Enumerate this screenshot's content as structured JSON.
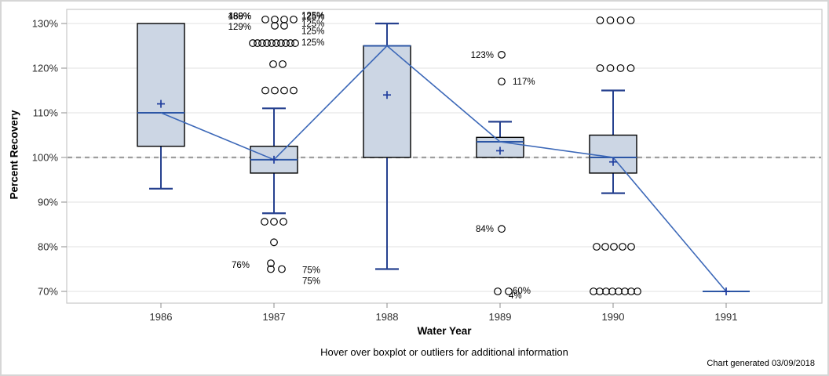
{
  "chart_data": {
    "type": "boxplot",
    "xlabel": "Water Year",
    "ylabel": "Percent Recovery",
    "footnote": "Hover over boxplot or outliers for additional information",
    "credit": "Chart generated 03/09/2018",
    "categories": [
      "1986",
      "1987",
      "1988",
      "1989",
      "1990",
      "1991"
    ],
    "ylim": [
      70,
      130
    ],
    "y_ticks": [
      70,
      80,
      90,
      100,
      110,
      120,
      130
    ],
    "y_tick_suffix": "%",
    "grid": true,
    "legend": "none",
    "reference_line": 100,
    "connect_series": {
      "name": "median",
      "values": [
        110,
        99.5,
        125,
        103.5,
        100,
        70
      ]
    },
    "boxes": [
      {
        "category": "1986",
        "q1": 102.5,
        "median": 110,
        "q3": 130,
        "mean": 112,
        "whisker_low": 93,
        "whisker_high": 130
      },
      {
        "category": "1987",
        "q1": 96.5,
        "median": 99.5,
        "q3": 102.5,
        "mean": 99.5,
        "whisker_low": 87.5,
        "whisker_high": 111
      },
      {
        "category": "1988",
        "q1": 100,
        "median": 125,
        "q3": 125,
        "mean": 114,
        "whisker_low": 75,
        "whisker_high": 130
      },
      {
        "category": "1989",
        "q1": 100,
        "median": 103.5,
        "q3": 104.5,
        "mean": 101.5,
        "whisker_low": 100,
        "whisker_high": 108
      },
      {
        "category": "1990",
        "q1": 96.5,
        "median": 100,
        "q3": 105,
        "mean": 99,
        "whisker_low": 92,
        "whisker_high": 115
      },
      {
        "category": "1991",
        "q1": 70,
        "median": 70,
        "q3": 70,
        "mean": 70,
        "whisker_low": 70,
        "whisker_high": 70
      }
    ],
    "outliers": [
      {
        "category": "1987",
        "rows": [
          {
            "v": 130.9,
            "n": 4,
            "gap": 12,
            "dx": 7
          },
          {
            "v": 129.5,
            "n": 2,
            "gap": 12,
            "dx": 7
          },
          {
            "v": 125.6,
            "n": 10,
            "gap": 6,
            "dx": 0
          },
          {
            "v": 120.9,
            "n": 2,
            "gap": 12,
            "dx": 5
          },
          {
            "v": 115,
            "n": 4,
            "gap": 12,
            "dx": 7
          },
          {
            "v": 85.6,
            "n": 3,
            "gap": 12,
            "dx": 0
          },
          {
            "v": 81,
            "n": 1,
            "gap": 12,
            "dx": 0
          },
          {
            "v": 76.3,
            "n": 1,
            "gap": 12,
            "dx": -4
          },
          {
            "v": 75,
            "n": 2,
            "gap": 14,
            "dx": 3
          }
        ]
      },
      {
        "category": "1989",
        "rows": [
          {
            "v": 123,
            "n": 1,
            "gap": 12,
            "dx": 2
          },
          {
            "v": 117,
            "n": 1,
            "gap": 12,
            "dx": 2
          },
          {
            "v": 84,
            "n": 1,
            "gap": 12,
            "dx": 2
          },
          {
            "v": 70,
            "n": 2,
            "gap": 14,
            "dx": 4
          }
        ]
      },
      {
        "category": "1990",
        "rows": [
          {
            "v": 130.7,
            "n": 4,
            "gap": 13,
            "dx": 3
          },
          {
            "v": 120,
            "n": 4,
            "gap": 13,
            "dx": 3
          },
          {
            "v": 80,
            "n": 5,
            "gap": 11,
            "dx": 1
          },
          {
            "v": 70,
            "n": 8,
            "gap": 8,
            "dx": 3
          }
        ]
      }
    ],
    "annotations": [
      {
        "category": "1987",
        "text": "130%",
        "v": 131.7,
        "dx": -29,
        "anchor": "end"
      },
      {
        "category": "1987",
        "text": "469%",
        "v": 131.7,
        "dx": -29,
        "anchor": "end"
      },
      {
        "category": "1987",
        "text": "188%",
        "v": 131.7,
        "dx": -29,
        "anchor": "end"
      },
      {
        "category": "1987",
        "text": "129%",
        "v": 129.3,
        "dx": -29,
        "anchor": "end"
      },
      {
        "category": "1987",
        "text": "125%",
        "v": 131.8,
        "dx": 35,
        "anchor": "start"
      },
      {
        "category": "1987",
        "text": "125%",
        "v": 131.6,
        "dx": 35,
        "anchor": "start"
      },
      {
        "category": "1987",
        "text": "125%",
        "v": 130.0,
        "dx": 35,
        "anchor": "start"
      },
      {
        "category": "1987",
        "text": "125%",
        "v": 128.3,
        "dx": 35,
        "anchor": "start"
      },
      {
        "category": "1987",
        "text": "125%",
        "v": 125.8,
        "dx": 35,
        "anchor": "start"
      },
      {
        "category": "1987",
        "text": "76%",
        "v": 76,
        "dx": -31,
        "anchor": "end"
      },
      {
        "category": "1987",
        "text": "75%",
        "v": 74.8,
        "dx": 36,
        "anchor": "start"
      },
      {
        "category": "1987",
        "text": "75%",
        "v": 72.4,
        "dx": 36,
        "anchor": "start"
      },
      {
        "category": "1989",
        "text": "123%",
        "v": 123,
        "dx": -8,
        "anchor": "end"
      },
      {
        "category": "1989",
        "text": "117%",
        "v": 117,
        "dx": 16,
        "anchor": "start"
      },
      {
        "category": "1989",
        "text": "84%",
        "v": 84,
        "dx": -8,
        "anchor": "end"
      },
      {
        "category": "1989",
        "text": "60%",
        "v": 70.2,
        "dx": 16,
        "anchor": "start"
      },
      {
        "category": "1989",
        "text": "4%",
        "v": 69.1,
        "dx": 11,
        "anchor": "start"
      }
    ],
    "colors": {
      "box_fill": "#ccd6e4",
      "box_border": "#000000",
      "median": "#2c56a5",
      "whisker": "#26418f",
      "connect_line": "#3c68b8",
      "mean_marker": "#1f3d9e",
      "outlier_stroke": "#000000",
      "reference_line": "#9e9e9e",
      "gridline": "#ececec",
      "frame": "#c9c9c9",
      "tick": "#8c8c8c",
      "tick_text": "#2e2e2e"
    }
  }
}
